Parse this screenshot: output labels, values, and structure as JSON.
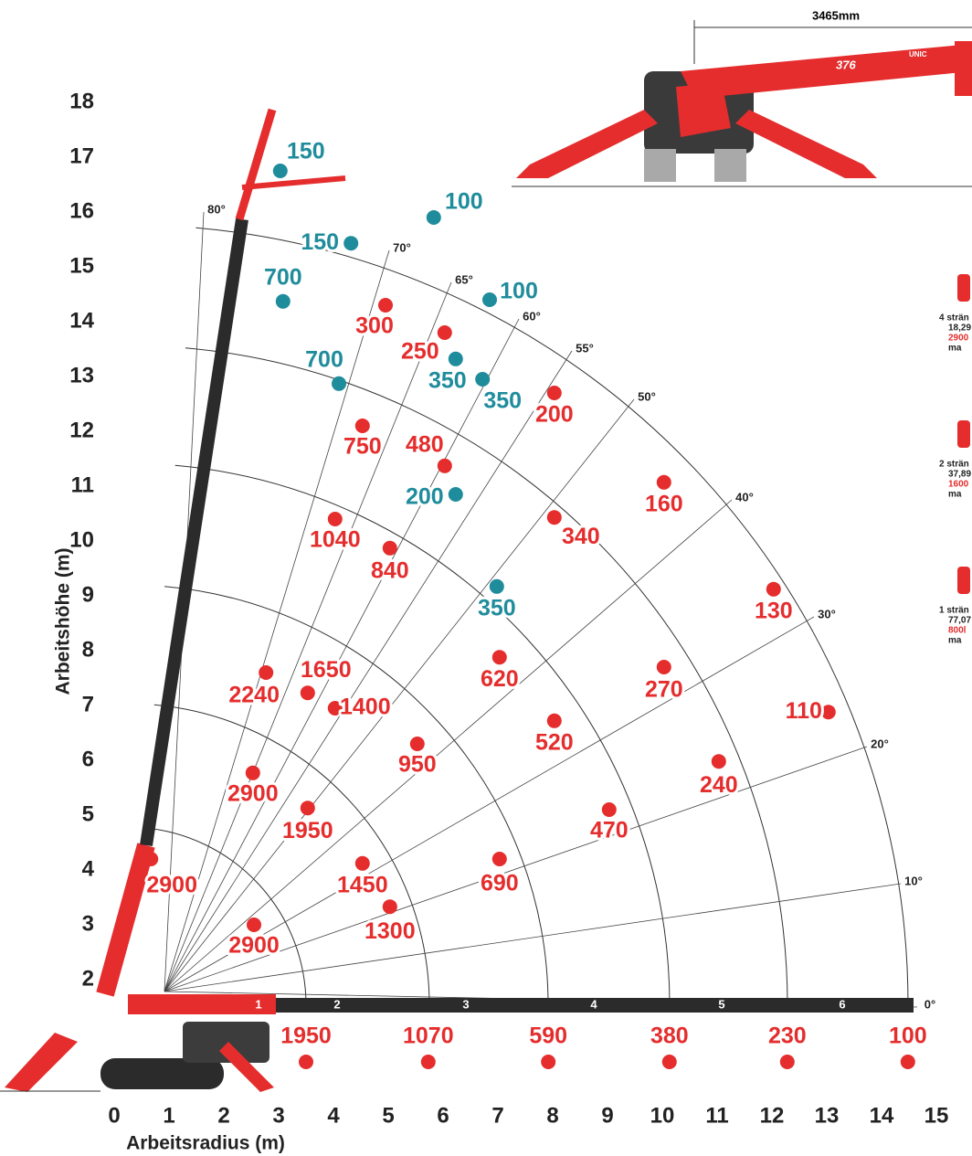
{
  "chart_data": {
    "type": "scatter",
    "xlabel": "Arbeitsradius (m)",
    "ylabel": "Arbeitshöhe (m)",
    "xlim": [
      0,
      15
    ],
    "ylim": [
      0,
      18
    ],
    "xticks": [
      0,
      1,
      2,
      3,
      4,
      5,
      6,
      7,
      8,
      9,
      10,
      11,
      12,
      13,
      14,
      15
    ],
    "yticks": [
      2,
      3,
      4,
      5,
      6,
      7,
      8,
      9,
      10,
      11,
      12,
      13,
      14,
      15,
      16,
      17,
      18
    ],
    "grid": true,
    "angle_labels": [
      "0°",
      "10°",
      "20°",
      "30°",
      "40°",
      "50°",
      "55°",
      "60°",
      "65°",
      "70°",
      "80°"
    ],
    "boom_sections": [
      1,
      2,
      3,
      4,
      5,
      6
    ],
    "series": [
      {
        "color": "#e52d2d",
        "x": [
          0.67,
          2.55,
          2.53,
          3.53,
          4.53,
          5.03,
          2.77,
          3.53,
          4.03,
          5.53,
          7.03,
          4.03,
          5.03,
          7.03,
          8.03,
          9.03,
          4.53,
          6.03,
          8.03,
          10.03,
          11.03,
          4.95,
          6.03,
          8.03,
          10.03,
          12.03,
          13.03,
          3.5,
          5.73,
          7.92,
          10.13,
          12.28,
          14.48
        ],
        "values": [
          4.2,
          3.0,
          5.77,
          5.13,
          4.12,
          3.33,
          7.6,
          7.23,
          6.95,
          6.3,
          4.2,
          10.4,
          9.87,
          7.88,
          6.72,
          5.1,
          12.1,
          11.37,
          10.43,
          7.7,
          5.98,
          14.3,
          13.8,
          12.7,
          11.07,
          9.12,
          6.88,
          0.5,
          0.5,
          0.5,
          0.5,
          0.5,
          0.5
        ],
        "loads": [
          2900,
          2900,
          2900,
          1950,
          1450,
          1300,
          2240,
          1650,
          1400,
          950,
          690,
          1040,
          840,
          620,
          520,
          470,
          750,
          480,
          340,
          270,
          240,
          300,
          250,
          200,
          160,
          130,
          110,
          1950,
          1070,
          590,
          380,
          230,
          100
        ]
      },
      {
        "color": "#1f8c9c",
        "x": [
          3.03,
          4.32,
          5.83,
          6.85,
          3.08,
          4.1,
          6.23,
          6.72,
          6.23,
          6.98
        ],
        "values": [
          16.75,
          15.43,
          15.9,
          14.4,
          14.37,
          12.87,
          13.32,
          12.95,
          10.85,
          9.17
        ],
        "loads": [
          150,
          150,
          100,
          100,
          700,
          700,
          350,
          350,
          200,
          350
        ]
      }
    ]
  },
  "crane_picture": {
    "dimension": "3465mm",
    "model": "376",
    "brand": "UNIC"
  },
  "hooks": [
    {
      "lines": [
        "4 strän",
        "18,29",
        "2900",
        "ma"
      ]
    },
    {
      "lines": [
        "2 strän",
        "37,89",
        "1600",
        "ma"
      ]
    },
    {
      "lines": [
        "1 strän",
        "77,07",
        "800l",
        "ma"
      ]
    }
  ]
}
